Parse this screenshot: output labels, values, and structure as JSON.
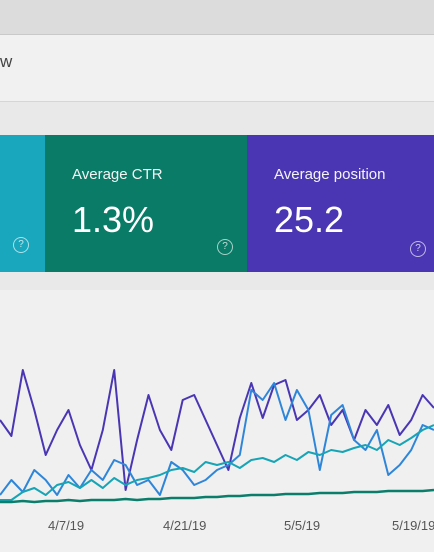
{
  "header": {
    "title_fragment": "w"
  },
  "cards": [
    {
      "id": "cyan",
      "label": "",
      "value": "",
      "color": "#18a7bd"
    },
    {
      "id": "ctr",
      "label": "Average CTR",
      "value": "1.3%",
      "color": "#0a7b67"
    },
    {
      "id": "position",
      "label": "Average position",
      "value": "25.2",
      "color": "#4a36b3"
    }
  ],
  "icons": {
    "help": "help-circle-icon"
  },
  "chart_data": {
    "type": "line",
    "x_ticks": [
      "4/7/19",
      "4/21/19",
      "5/5/19",
      "5/19/19"
    ],
    "grid": false,
    "series": [
      {
        "color": "#4a36b3",
        "values": [
          420,
          436,
          370,
          410,
          455,
          430,
          410,
          445,
          470,
          430,
          370,
          490,
          440,
          395,
          430,
          450,
          400,
          395,
          420,
          445,
          470,
          418,
          383,
          418,
          385,
          380,
          420,
          410,
          395,
          425,
          410,
          440,
          410,
          425,
          405,
          435,
          420,
          395,
          408
        ]
      },
      {
        "color": "#2f86d9",
        "values": [
          495,
          480,
          492,
          470,
          480,
          495,
          475,
          488,
          470,
          480,
          460,
          465,
          485,
          480,
          495,
          462,
          470,
          485,
          480,
          470,
          465,
          455,
          390,
          400,
          383,
          420,
          390,
          410,
          470,
          415,
          405,
          440,
          450,
          430,
          475,
          465,
          450,
          425,
          430
        ]
      },
      {
        "color": "#17a5b5",
        "values": [
          500,
          500,
          492,
          488,
          495,
          485,
          482,
          488,
          480,
          488,
          478,
          485,
          480,
          478,
          475,
          470,
          468,
          472,
          462,
          465,
          462,
          468,
          460,
          458,
          462,
          455,
          460,
          452,
          455,
          450,
          452,
          448,
          445,
          450,
          440,
          445,
          438,
          430,
          425
        ]
      },
      {
        "color": "#0b7e6b",
        "values": [
          502,
          502,
          501,
          502,
          501,
          501,
          500,
          501,
          500,
          500,
          500,
          499,
          500,
          499,
          499,
          498,
          498,
          498,
          497,
          497,
          496,
          496,
          495,
          495,
          495,
          494,
          494,
          494,
          493,
          493,
          493,
          492,
          492,
          492,
          491,
          491,
          491,
          491,
          490
        ]
      }
    ]
  }
}
